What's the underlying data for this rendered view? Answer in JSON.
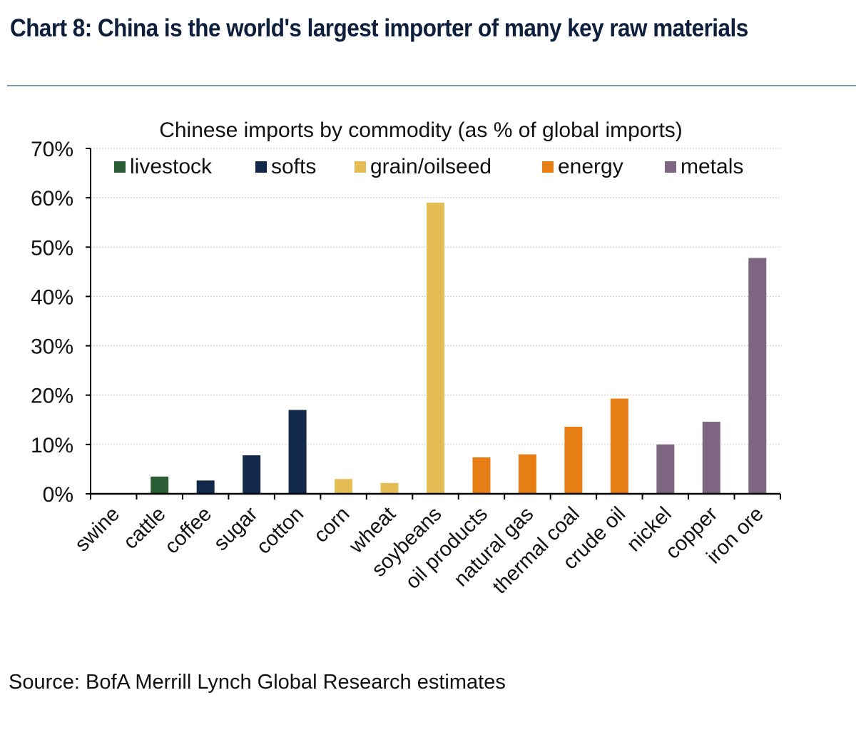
{
  "title": "Chart 8: China is the world's largest importer of many key raw materials",
  "source": "Source: BofA Merrill Lynch Global Research estimates",
  "chart_data": {
    "type": "bar",
    "subtitle": "Chinese imports by commodity (as % of global imports)",
    "xlabel": "",
    "ylabel": "",
    "ylim": [
      0,
      70
    ],
    "yticks": [
      0,
      10,
      20,
      30,
      40,
      50,
      60,
      70
    ],
    "ytick_labels": [
      "0%",
      "10%",
      "20%",
      "30%",
      "40%",
      "50%",
      "60%",
      "70%"
    ],
    "grid": true,
    "legend_position": "top",
    "legend": [
      {
        "name": "livestock",
        "color": "#2b5e34"
      },
      {
        "name": "softs",
        "color": "#13294b"
      },
      {
        "name": "grain/oilseed",
        "color": "#e4bd55"
      },
      {
        "name": "energy",
        "color": "#e67e15"
      },
      {
        "name": "metals",
        "color": "#7e6582"
      }
    ],
    "categories": [
      "swine",
      "cattle",
      "coffee",
      "sugar",
      "cotton",
      "corn",
      "wheat",
      "soybeans",
      "oil products",
      "natural gas",
      "thermal coal",
      "crude oil",
      "nickel",
      "copper",
      "iron ore"
    ],
    "groups": [
      "livestock",
      "livestock",
      "softs",
      "softs",
      "softs",
      "grain/oilseed",
      "grain/oilseed",
      "grain/oilseed",
      "energy",
      "energy",
      "energy",
      "energy",
      "metals",
      "metals",
      "metals"
    ],
    "values": [
      0,
      3.5,
      2.7,
      7.8,
      17.0,
      3.0,
      2.2,
      59.0,
      7.4,
      8.0,
      13.6,
      19.3,
      10.0,
      14.6,
      47.8
    ]
  }
}
